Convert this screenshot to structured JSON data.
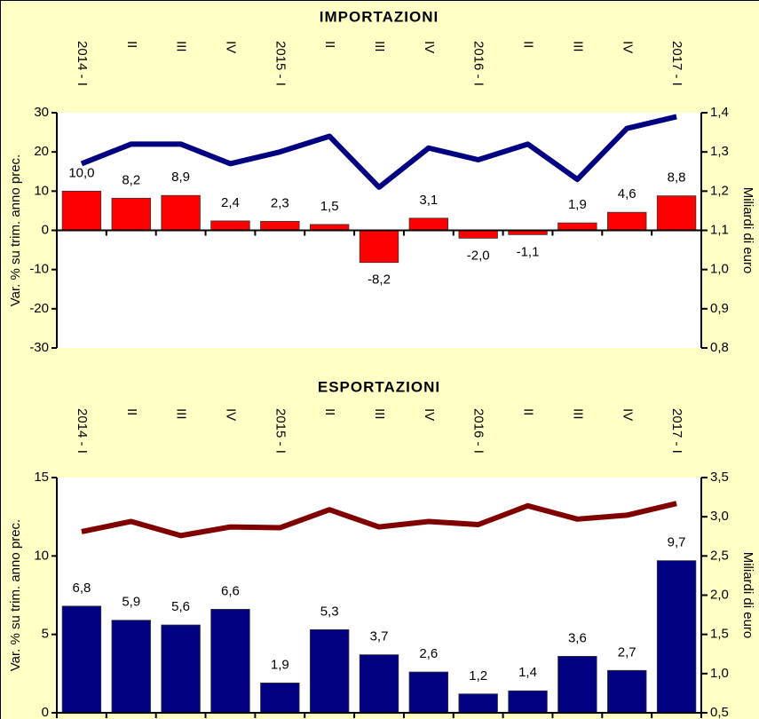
{
  "chart_data": [
    {
      "type": "bar",
      "title": "IMPORTAZIONI",
      "categories": [
        "2014 - I",
        "II",
        "III",
        "IV",
        "2015 - I",
        "II",
        "III",
        "IV",
        "2016 - I",
        "II",
        "III",
        "IV",
        "2017 - I"
      ],
      "ylabel": "Var. % su trim. anno prec.",
      "y2label": "Miliardi di euro",
      "ylim": [
        -30,
        30
      ],
      "yticks": [
        -30,
        -20,
        -10,
        0,
        10,
        20,
        30
      ],
      "y2lim": [
        0.8,
        1.4
      ],
      "y2ticks": [
        {
          "value": 0.8,
          "label": "0,8"
        },
        {
          "value": 0.9,
          "label": "0,9"
        },
        {
          "value": 1.0,
          "label": "1,0"
        },
        {
          "value": 1.1,
          "label": "1,1"
        },
        {
          "value": 1.2,
          "label": "1,2"
        },
        {
          "value": 1.3,
          "label": "1,3"
        },
        {
          "value": 1.4,
          "label": "1,4"
        }
      ],
      "series": [
        {
          "type": "bar",
          "color": "#ff0000",
          "values": [
            10.0,
            8.2,
            8.9,
            2.4,
            2.3,
            1.5,
            -8.2,
            3.1,
            -2.0,
            -1.1,
            1.9,
            4.6,
            8.8
          ],
          "value_labels": [
            "10,0",
            "8,2",
            "8,9",
            "2,4",
            "2,3",
            "1,5",
            "-8,2",
            "3,1",
            "-2,0",
            "-1,1",
            "1,9",
            "4,6",
            "8,8"
          ]
        },
        {
          "type": "line",
          "axis": "y2",
          "color": "#000080",
          "values": [
            1.27,
            1.32,
            1.32,
            1.27,
            1.3,
            1.34,
            1.21,
            1.31,
            1.28,
            1.32,
            1.23,
            1.36,
            1.39
          ]
        }
      ]
    },
    {
      "type": "bar",
      "title": "ESPORTAZIONI",
      "categories": [
        "2014 - I",
        "II",
        "III",
        "IV",
        "2015 - I",
        "II",
        "III",
        "IV",
        "2016 - I",
        "II",
        "III",
        "IV",
        "2017 - I"
      ],
      "ylabel": "Var. % su trim. anno prec.",
      "y2label": "Miliardi di euro",
      "ylim": [
        0,
        15
      ],
      "yticks": [
        0,
        5,
        10,
        15
      ],
      "y2lim": [
        0.5,
        3.5
      ],
      "y2ticks": [
        {
          "value": 0.5,
          "label": "0,5"
        },
        {
          "value": 1.0,
          "label": "1,0"
        },
        {
          "value": 1.5,
          "label": "1,5"
        },
        {
          "value": 2.0,
          "label": "2,0"
        },
        {
          "value": 2.5,
          "label": "2,5"
        },
        {
          "value": 3.0,
          "label": "3,0"
        },
        {
          "value": 3.5,
          "label": "3,5"
        }
      ],
      "series": [
        {
          "type": "bar",
          "color": "#000080",
          "values": [
            6.8,
            5.9,
            5.6,
            6.6,
            1.9,
            5.3,
            3.7,
            2.6,
            1.2,
            1.4,
            3.6,
            2.7,
            9.7
          ],
          "value_labels": [
            "6,8",
            "5,9",
            "5,6",
            "6,6",
            "1,9",
            "5,3",
            "3,7",
            "2,6",
            "1,2",
            "1,4",
            "3,6",
            "2,7",
            "9,7"
          ]
        },
        {
          "type": "line",
          "axis": "y2",
          "color": "#800000",
          "values": [
            2.81,
            2.94,
            2.76,
            2.87,
            2.86,
            3.09,
            2.87,
            2.94,
            2.9,
            3.14,
            2.97,
            3.02,
            3.17
          ]
        }
      ]
    }
  ]
}
